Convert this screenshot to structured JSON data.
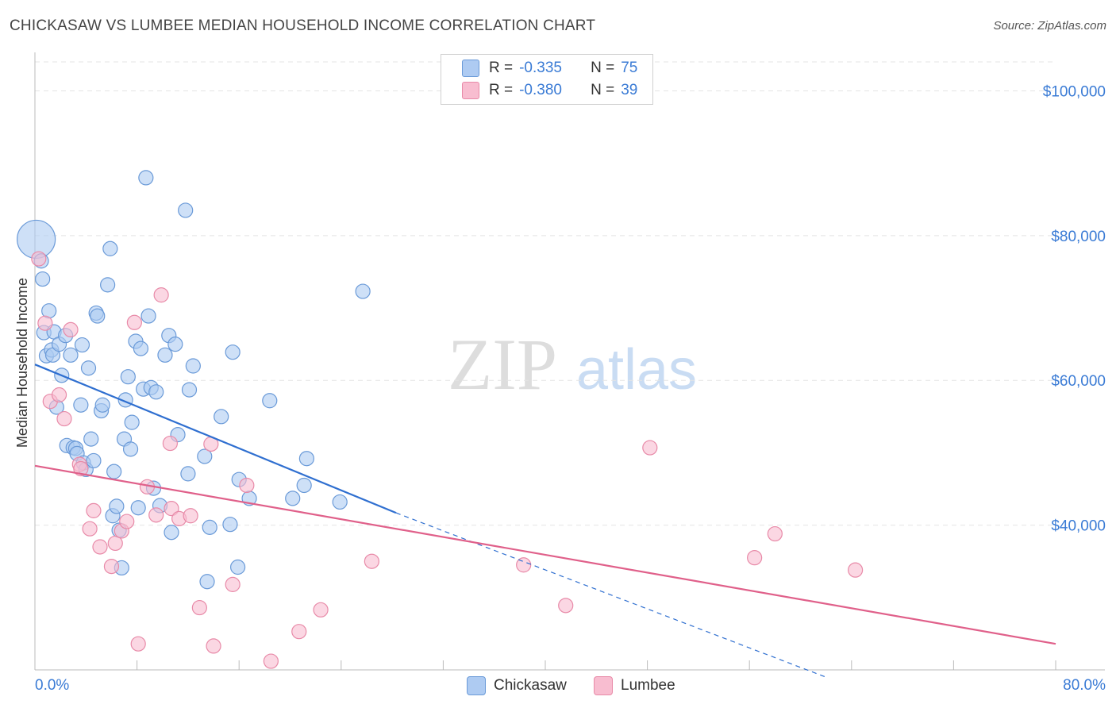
{
  "title": "CHICKASAW VS LUMBEE MEDIAN HOUSEHOLD INCOME CORRELATION CHART",
  "source": "Source: ZipAtlas.com",
  "watermark": {
    "zip": "ZIP",
    "atlas": "atlas"
  },
  "legend": {
    "r_label": "R =",
    "n_label": "N =",
    "rows": [
      {
        "name": "Chickasaw",
        "r": "-0.335",
        "n": "75",
        "color": "#aecbf2"
      },
      {
        "name": "Lumbee",
        "r": "-0.380",
        "n": "39",
        "color": "#f8bdd0"
      }
    ]
  },
  "chart_data": {
    "type": "scatter",
    "title": "CHICKASAW VS LUMBEE MEDIAN HOUSEHOLD INCOME CORRELATION CHART",
    "xlabel": "",
    "ylabel": "Median Household Income",
    "xlim": [
      0,
      80
    ],
    "ylim": [
      20000,
      104000
    ],
    "x_tick_labels": [
      "0.0%",
      "80.0%"
    ],
    "y_ticks": [
      40000,
      60000,
      80000,
      100000
    ],
    "y_tick_labels": [
      "$40,000",
      "$60,000",
      "$80,000",
      "$100,000"
    ],
    "grid": true,
    "legend_position": "top-center",
    "series": [
      {
        "name": "Chickasaw",
        "color": "#aecbf2",
        "edge_color": "#6a9ad8",
        "line_color": "#2f6fd0",
        "trend": {
          "x0": 0,
          "y0": 62200,
          "x1": 28.3,
          "y1": 41700,
          "dash_to_x": 62,
          "dash_to_y": 19000
        },
        "points": [
          [
            0.1,
            79500,
            1
          ],
          [
            0.5,
            76500,
            0
          ],
          [
            0.6,
            74000,
            0
          ],
          [
            0.7,
            66600,
            0
          ],
          [
            0.9,
            63400,
            0
          ],
          [
            1.1,
            69600,
            0
          ],
          [
            1.3,
            64200,
            0
          ],
          [
            1.4,
            63500,
            0
          ],
          [
            1.5,
            66700,
            0
          ],
          [
            1.7,
            56300,
            0
          ],
          [
            1.9,
            65000,
            0
          ],
          [
            2.1,
            60700,
            0
          ],
          [
            2.4,
            66200,
            0
          ],
          [
            2.5,
            51000,
            0
          ],
          [
            2.8,
            63500,
            0
          ],
          [
            3.0,
            50700,
            0
          ],
          [
            3.2,
            50600,
            0
          ],
          [
            3.3,
            49900,
            0
          ],
          [
            3.6,
            56600,
            0
          ],
          [
            3.7,
            64900,
            0
          ],
          [
            3.8,
            48600,
            0
          ],
          [
            4.0,
            47700,
            0
          ],
          [
            4.2,
            61700,
            0
          ],
          [
            4.4,
            51900,
            0
          ],
          [
            4.6,
            48900,
            0
          ],
          [
            4.8,
            69300,
            0
          ],
          [
            4.9,
            68900,
            0
          ],
          [
            5.2,
            55800,
            0
          ],
          [
            5.3,
            56600,
            0
          ],
          [
            5.7,
            73200,
            0
          ],
          [
            5.9,
            78200,
            0
          ],
          [
            6.1,
            41300,
            0
          ],
          [
            6.2,
            47400,
            0
          ],
          [
            6.4,
            42600,
            0
          ],
          [
            6.6,
            39300,
            0
          ],
          [
            6.8,
            34100,
            0
          ],
          [
            7.0,
            51900,
            0
          ],
          [
            7.1,
            57300,
            0
          ],
          [
            7.3,
            60500,
            0
          ],
          [
            7.5,
            50500,
            0
          ],
          [
            7.6,
            54200,
            0
          ],
          [
            7.9,
            65400,
            0
          ],
          [
            8.1,
            42400,
            0
          ],
          [
            8.3,
            64400,
            0
          ],
          [
            8.5,
            58800,
            0
          ],
          [
            8.7,
            88000,
            0
          ],
          [
            8.9,
            68900,
            0
          ],
          [
            9.1,
            59000,
            0
          ],
          [
            9.3,
            45100,
            0
          ],
          [
            9.5,
            58400,
            0
          ],
          [
            9.8,
            42700,
            0
          ],
          [
            10.2,
            63500,
            0
          ],
          [
            10.5,
            66200,
            0
          ],
          [
            10.7,
            39000,
            0
          ],
          [
            11.0,
            65000,
            0
          ],
          [
            11.2,
            52500,
            0
          ],
          [
            11.8,
            83500,
            0
          ],
          [
            12.0,
            47100,
            0
          ],
          [
            12.1,
            58700,
            0
          ],
          [
            12.4,
            62000,
            0
          ],
          [
            13.3,
            49500,
            0
          ],
          [
            13.5,
            32200,
            0
          ],
          [
            13.7,
            39700,
            0
          ],
          [
            14.6,
            55000,
            0
          ],
          [
            15.3,
            40100,
            0
          ],
          [
            15.5,
            63900,
            0
          ],
          [
            15.9,
            34200,
            0
          ],
          [
            16.0,
            46300,
            0
          ],
          [
            16.8,
            43700,
            0
          ],
          [
            18.4,
            57200,
            0
          ],
          [
            20.2,
            43700,
            0
          ],
          [
            21.1,
            45500,
            0
          ],
          [
            21.3,
            49200,
            0
          ],
          [
            23.9,
            43200,
            0
          ],
          [
            25.7,
            72300,
            0
          ]
        ]
      },
      {
        "name": "Lumbee",
        "color": "#f8bdd0",
        "edge_color": "#e88aa8",
        "line_color": "#e0608a",
        "trend": {
          "x0": 0,
          "y0": 48200,
          "x1": 80,
          "y1": 23600
        },
        "points": [
          [
            0.3,
            76800,
            0
          ],
          [
            0.8,
            67900,
            0
          ],
          [
            1.2,
            57100,
            0
          ],
          [
            1.9,
            58000,
            0
          ],
          [
            2.3,
            54700,
            0
          ],
          [
            2.8,
            67000,
            0
          ],
          [
            3.5,
            48400,
            0
          ],
          [
            3.6,
            47800,
            0
          ],
          [
            4.3,
            39500,
            0
          ],
          [
            4.6,
            42000,
            0
          ],
          [
            5.1,
            37000,
            0
          ],
          [
            6.0,
            34300,
            0
          ],
          [
            6.3,
            37500,
            0
          ],
          [
            6.8,
            39200,
            0
          ],
          [
            7.2,
            40500,
            0
          ],
          [
            8.1,
            23600,
            0
          ],
          [
            7.8,
            68000,
            0
          ],
          [
            8.8,
            45300,
            0
          ],
          [
            9.5,
            41400,
            0
          ],
          [
            9.9,
            71800,
            0
          ],
          [
            10.7,
            42300,
            0
          ],
          [
            10.6,
            51300,
            0
          ],
          [
            11.3,
            40900,
            0
          ],
          [
            12.2,
            41300,
            0
          ],
          [
            12.9,
            28600,
            0
          ],
          [
            14.0,
            23300,
            0
          ],
          [
            13.8,
            51200,
            0
          ],
          [
            15.5,
            31800,
            0
          ],
          [
            16.6,
            45500,
            0
          ],
          [
            18.5,
            21200,
            0
          ],
          [
            20.7,
            25300,
            0
          ],
          [
            22.4,
            28300,
            0
          ],
          [
            26.4,
            35000,
            0
          ],
          [
            38.3,
            34500,
            0
          ],
          [
            41.6,
            28900,
            0
          ],
          [
            48.2,
            50700,
            0
          ],
          [
            56.4,
            35500,
            0
          ],
          [
            58.0,
            38800,
            0
          ],
          [
            64.3,
            33800,
            0
          ]
        ]
      }
    ]
  }
}
